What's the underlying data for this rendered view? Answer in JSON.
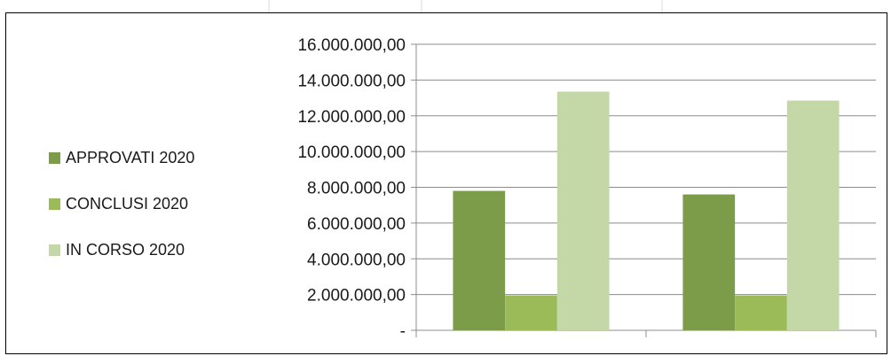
{
  "chart_data": {
    "type": "bar",
    "title": "",
    "xlabel": "",
    "ylabel": "",
    "categories": [
      "",
      ""
    ],
    "series": [
      {
        "name": "APPROVATI 2020",
        "color": "#7d9c4a",
        "values": [
          7800000,
          7600000
        ]
      },
      {
        "name": "CONCLUSI 2020",
        "color": "#9bbb59",
        "values": [
          1950000,
          1950000
        ]
      },
      {
        "name": "IN CORSO 2020",
        "color": "#c4d7a7",
        "values": [
          13350000,
          12850000
        ]
      }
    ],
    "ylim": [
      0,
      16000000
    ],
    "ytick_values": [
      0,
      2000000,
      4000000,
      6000000,
      8000000,
      10000000,
      12000000,
      14000000,
      16000000
    ],
    "ytick_labels": [
      "-",
      "2.000.000,00",
      "4.000.000,00",
      "6.000.000,00",
      "8.000.000,00",
      "10.000.000,00",
      "12.000.000,00",
      "14.000.000,00",
      "16.000.000,00"
    ],
    "grid": true,
    "legend_position": "left",
    "gridline_color": "#8c8c8c"
  }
}
